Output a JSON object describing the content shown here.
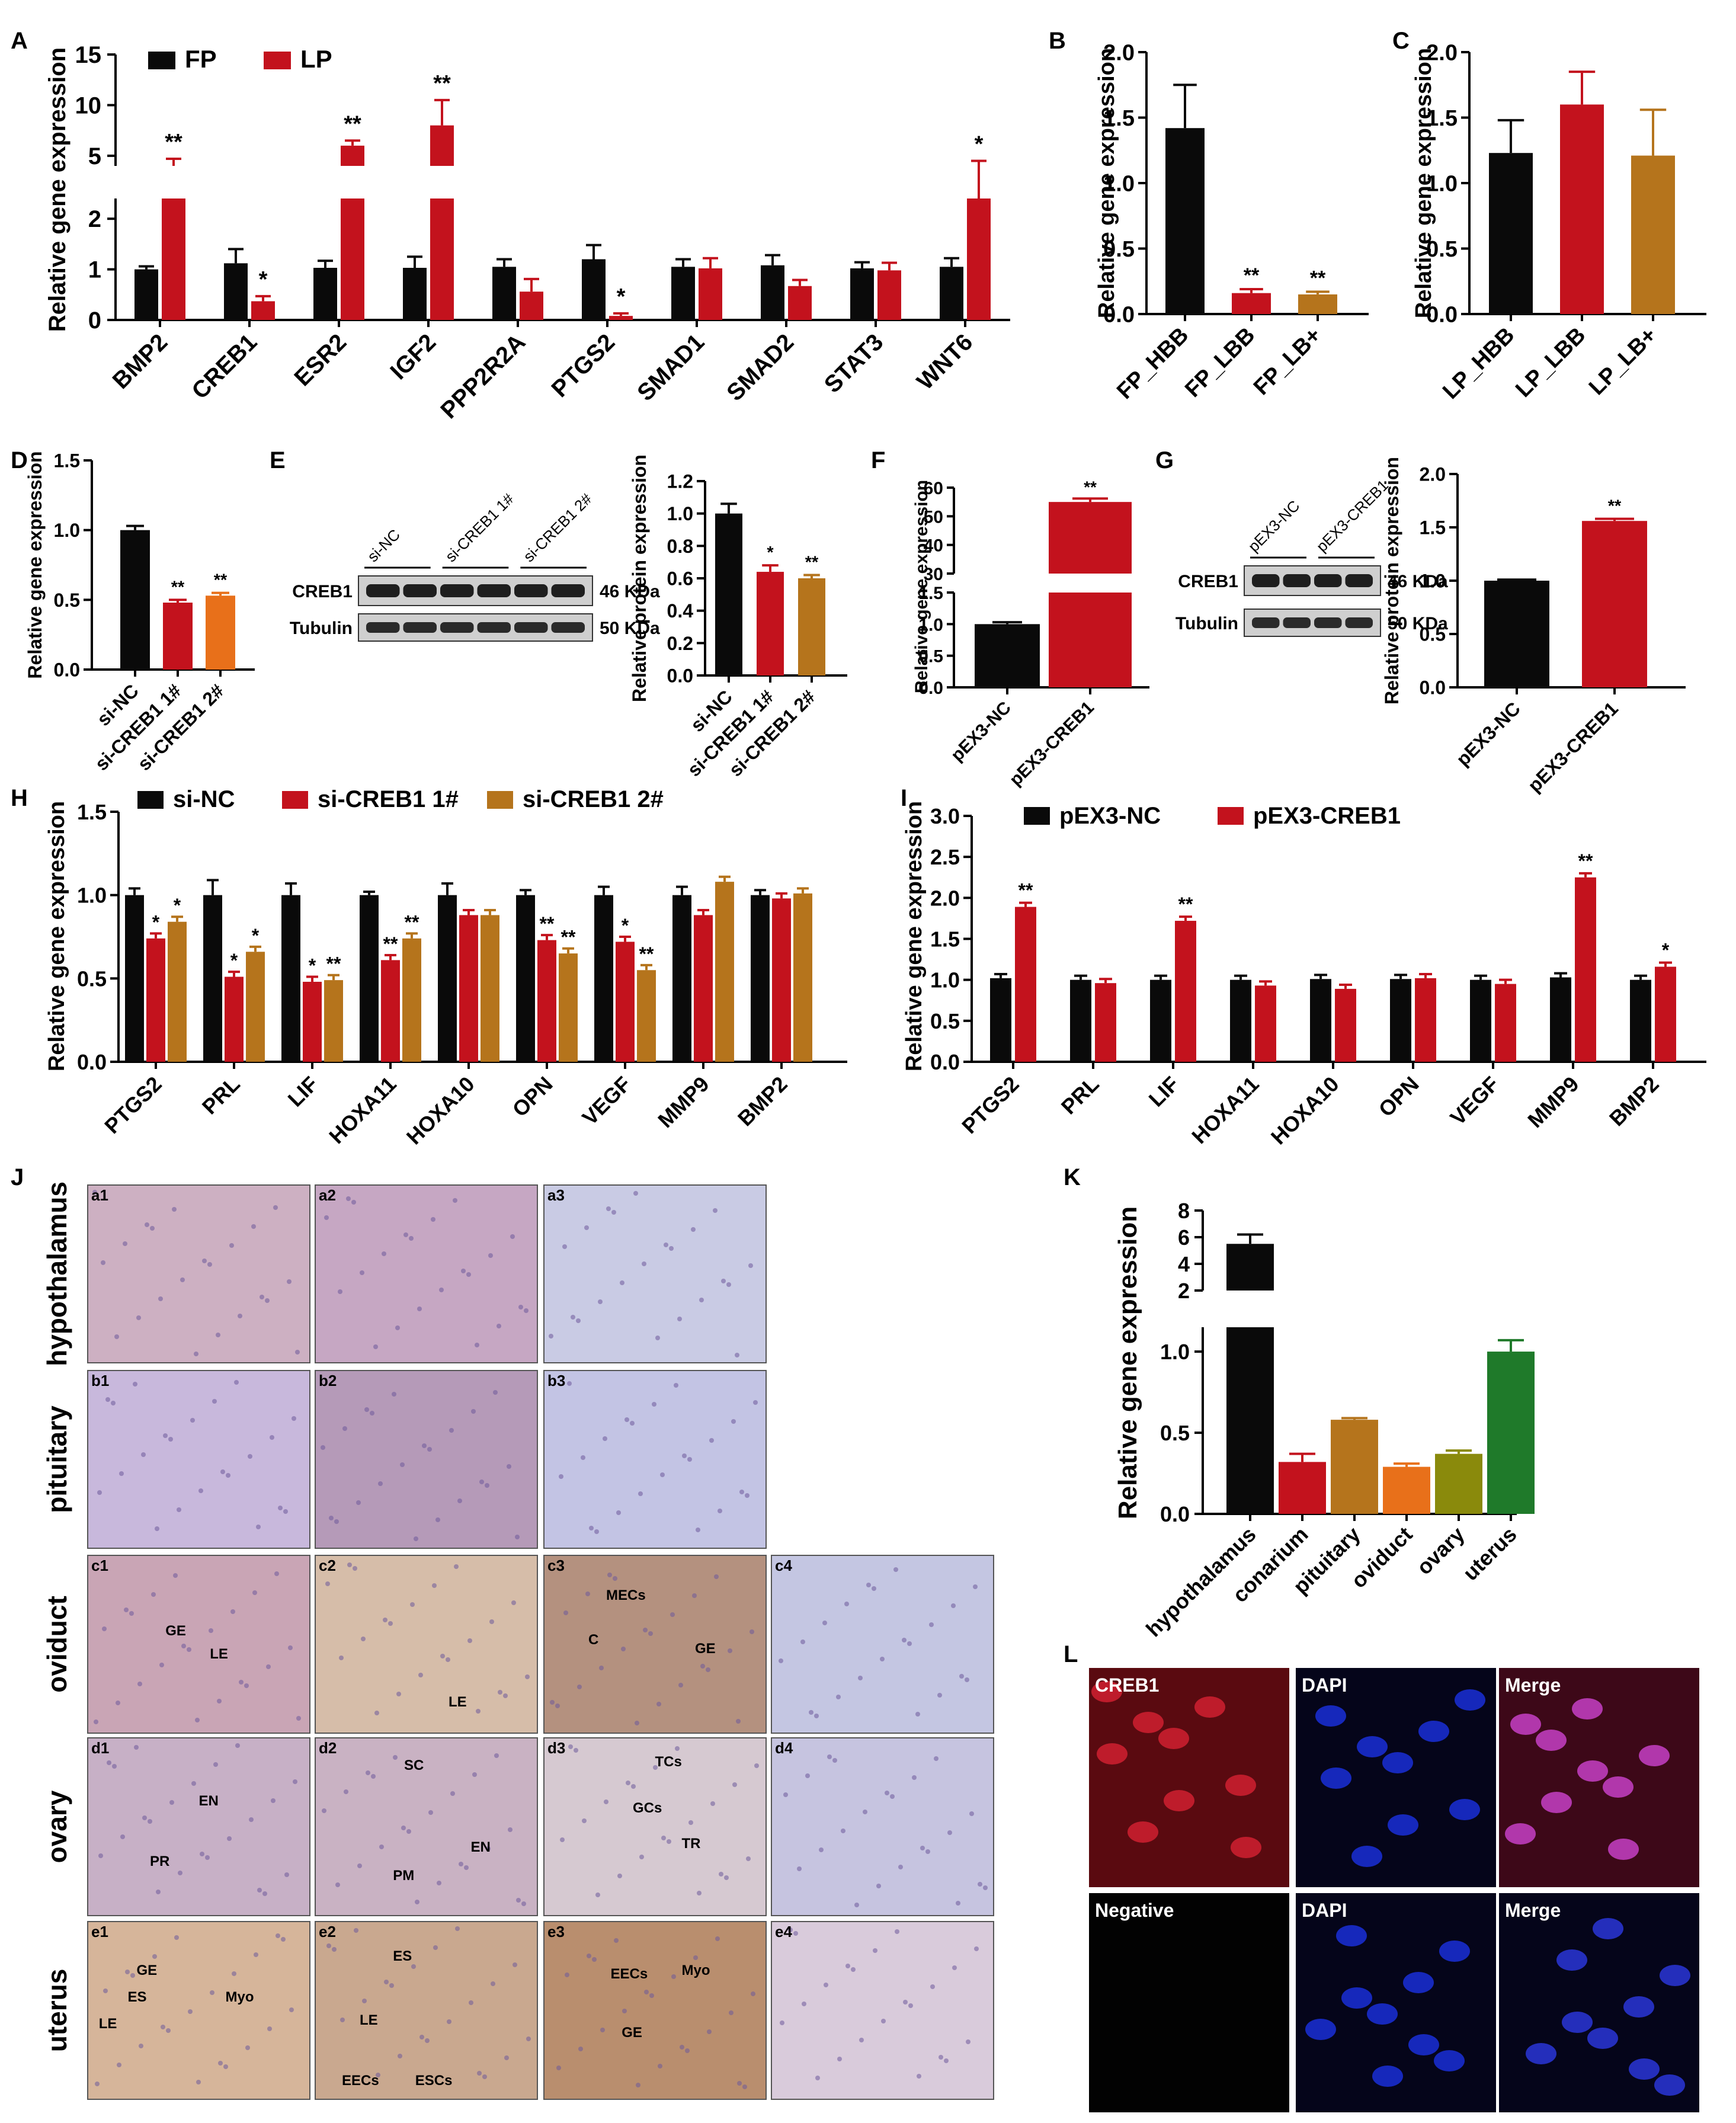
{
  "colors": {
    "black": "#0a0a0a",
    "red": "#c3121d",
    "brown": "#b5741c",
    "orange": "#e8701a",
    "olive": "#8a8a0c",
    "green": "#1f7a2a"
  },
  "chart_data": [
    {
      "panel": "A",
      "type": "bar",
      "ylabel": "Relative gene expression",
      "categories": [
        "BMP2",
        "CREB1",
        "ESR2",
        "IGF2",
        "PPP2R2A",
        "PTGS2",
        "SMAD1",
        "SMAD2",
        "STAT3",
        "WNT6"
      ],
      "legend": [
        "FP",
        "LP"
      ],
      "series": [
        {
          "name": "FP",
          "values": [
            1.0,
            1.12,
            1.03,
            1.03,
            1.05,
            1.2,
            1.05,
            1.08,
            1.02,
            1.05
          ],
          "err": [
            0.06,
            0.28,
            0.14,
            0.22,
            0.15,
            0.28,
            0.15,
            0.2,
            0.12,
            0.17
          ]
        },
        {
          "name": "LP",
          "values": [
            4.0,
            0.37,
            6.0,
            8.0,
            0.56,
            0.08,
            1.02,
            0.67,
            0.98,
            3.8
          ],
          "err": [
            0.7,
            0.1,
            0.5,
            2.5,
            0.25,
            0.05,
            0.2,
            0.12,
            0.15,
            0.7
          ]
        }
      ],
      "significance": [
        {
          "cat": "BMP2",
          "label": "**"
        },
        {
          "cat": "CREB1",
          "label": "*"
        },
        {
          "cat": "ESR2",
          "label": "**"
        },
        {
          "cat": "IGF2",
          "label": "**"
        },
        {
          "cat": "PTGS2",
          "label": "*"
        },
        {
          "cat": "WNT6",
          "label": "*"
        }
      ],
      "y_lower_ticks": [
        "0",
        "1",
        "2"
      ],
      "y_upper_ticks": [
        "5",
        "10",
        "15"
      ]
    },
    {
      "panel": "B",
      "type": "bar",
      "ylabel": "Relative gene expression",
      "categories": [
        "FP_HBB",
        "FP_LBB",
        "FP_LB+"
      ],
      "values": [
        1.42,
        0.16,
        0.15
      ],
      "err": [
        0.33,
        0.03,
        0.02
      ],
      "significance": [
        "",
        "**",
        "**"
      ],
      "ylim": [
        0,
        2.0
      ],
      "yticks": [
        "0.0",
        "0.5",
        "1.0",
        "1.5",
        "2.0"
      ]
    },
    {
      "panel": "C",
      "type": "bar",
      "ylabel": "Relative gene expression",
      "categories": [
        "LP_HBB",
        "LP_LBB",
        "LP_LB+"
      ],
      "values": [
        1.23,
        1.6,
        1.21
      ],
      "err": [
        0.25,
        0.25,
        0.35
      ],
      "ylim": [
        0,
        2.0
      ],
      "yticks": [
        "0.0",
        "0.5",
        "1.0",
        "1.5",
        "2.0"
      ]
    },
    {
      "panel": "D",
      "type": "bar",
      "ylabel": "Relative gene expression",
      "categories": [
        "si-NC",
        "si-CREB1 1#",
        "si-CREB1 2#"
      ],
      "values": [
        1.0,
        0.48,
        0.53
      ],
      "err": [
        0.03,
        0.02,
        0.02
      ],
      "significance": [
        "",
        "**",
        "**"
      ],
      "ylim": [
        0,
        1.5
      ],
      "yticks": [
        "0.0",
        "0.5",
        "1.0",
        "1.5"
      ]
    },
    {
      "panel": "E",
      "type": "bar",
      "ylabel": "Relative protein expression",
      "categories": [
        "si-NC",
        "si-CREB1 1#",
        "si-CREB1 2#"
      ],
      "values": [
        1.0,
        0.64,
        0.6
      ],
      "err": [
        0.06,
        0.04,
        0.02
      ],
      "significance": [
        "",
        "*",
        "**"
      ],
      "ylim": [
        0,
        1.2
      ],
      "yticks": [
        "0.0",
        "0.2",
        "0.4",
        "0.6",
        "0.8",
        "1.0",
        "1.2"
      ]
    },
    {
      "panel": "F",
      "type": "bar",
      "ylabel": "Relative gene expression",
      "categories": [
        "pEX3-NC",
        "pEX3-CREB1"
      ],
      "values": [
        1.0,
        55.0
      ],
      "err": [
        0.03,
        1.2
      ],
      "significance": [
        "",
        "**"
      ],
      "y_lower_ticks": [
        "0.0",
        "0.5",
        "1.0",
        "1.5"
      ],
      "y_upper_ticks": [
        "30",
        "40",
        "50",
        "60"
      ]
    },
    {
      "panel": "G",
      "type": "bar",
      "ylabel": "Relative protein expression",
      "categories": [
        "pEX3-NC",
        "pEX3-CREB1"
      ],
      "values": [
        1.0,
        1.56
      ],
      "err": [
        0.01,
        0.02
      ],
      "significance": [
        "",
        "**"
      ],
      "ylim": [
        0,
        2.0
      ],
      "yticks": [
        "0.0",
        "0.5",
        "1.0",
        "1.5",
        "2.0"
      ]
    },
    {
      "panel": "H",
      "type": "bar",
      "ylabel": "Relative gene expression",
      "categories": [
        "PTGS2",
        "PRL",
        "LIF",
        "HOXA11",
        "HOXA10",
        "OPN",
        "VEGF",
        "MMP9",
        "BMP2"
      ],
      "legend": [
        "si-NC",
        "si-CREB1 1#",
        "si-CREB1 2#"
      ],
      "series": [
        {
          "name": "si-NC",
          "values": [
            1.0,
            1.0,
            1.0,
            1.0,
            1.0,
            1.0,
            1.0,
            1.0,
            1.0
          ],
          "err": [
            0.04,
            0.09,
            0.07,
            0.02,
            0.07,
            0.03,
            0.05,
            0.05,
            0.03
          ]
        },
        {
          "name": "si-CREB1 1#",
          "values": [
            0.74,
            0.51,
            0.48,
            0.61,
            0.88,
            0.73,
            0.72,
            0.88,
            0.98
          ]
        },
        {
          "name": "si-CREB1 2#",
          "values": [
            0.84,
            0.66,
            0.49,
            0.74,
            0.88,
            0.65,
            0.55,
            1.08,
            1.01
          ]
        }
      ],
      "significance": [
        [
          "",
          "*",
          "*"
        ],
        [
          "",
          "*",
          "*"
        ],
        [
          "",
          "*",
          "**"
        ],
        [
          "",
          "**",
          "**"
        ],
        [
          "",
          "",
          ""
        ],
        [
          "",
          "**",
          "**"
        ],
        [
          "",
          "*",
          "**"
        ],
        [
          "",
          "",
          ""
        ],
        [
          "",
          "",
          ""
        ]
      ],
      "ylim": [
        0,
        1.5
      ],
      "yticks": [
        "0.0",
        "0.5",
        "1.0",
        "1.5"
      ]
    },
    {
      "panel": "I",
      "type": "bar",
      "ylabel": "Relative gene expression",
      "categories": [
        "PTGS2",
        "PRL",
        "LIF",
        "HOXA11",
        "HOXA10",
        "OPN",
        "VEGF",
        "MMP9",
        "BMP2"
      ],
      "legend": [
        "pEX3-NC",
        "pEX3-CREB1"
      ],
      "series": [
        {
          "name": "pEX3-NC",
          "values": [
            1.02,
            1.0,
            1.0,
            1.0,
            1.01,
            1.01,
            1.0,
            1.03,
            1.0
          ]
        },
        {
          "name": "pEX3-CREB1",
          "values": [
            1.89,
            0.96,
            1.72,
            0.93,
            0.89,
            1.02,
            0.95,
            2.25,
            1.16
          ]
        }
      ],
      "significance": [
        "**",
        "",
        "**",
        "",
        "",
        "",
        "",
        "**",
        "*"
      ],
      "ylim": [
        0,
        3.0
      ],
      "yticks": [
        "0.0",
        "0.5",
        "1.0",
        "1.5",
        "2.0",
        "2.5",
        "3.0"
      ]
    },
    {
      "panel": "K",
      "type": "bar",
      "ylabel": "Relative gene expression",
      "categories": [
        "hypothalamus",
        "conarium",
        "pituitary",
        "oviduct",
        "ovary",
        "uterus"
      ],
      "values": [
        5.5,
        0.32,
        0.58,
        0.29,
        0.37,
        1.0
      ],
      "err": [
        0.7,
        0.05,
        0.01,
        0.02,
        0.02,
        0.07
      ],
      "y_lower_ticks": [
        "0.0",
        "0.5",
        "1.0"
      ],
      "y_upper_ticks": [
        "2",
        "4",
        "6",
        "8"
      ]
    }
  ],
  "panels": {
    "A": "A",
    "B": "B",
    "C": "C",
    "D": "D",
    "E": "E",
    "F": "F",
    "G": "G",
    "H": "H",
    "I": "I",
    "J": "J",
    "K": "K",
    "L": "L"
  },
  "blot_E": {
    "lanes": [
      "si-NC",
      "si-CREB1 1#",
      "si-CREB1 2#"
    ],
    "rows": [
      "CREB1",
      "Tubulin"
    ],
    "sizes": [
      "46 KDa",
      "50 KDa"
    ]
  },
  "blot_G": {
    "lanes": [
      "pEX3-NC",
      "pEX3-CREB1"
    ],
    "rows": [
      "CREB1",
      "Tubulin"
    ],
    "sizes": [
      "46 KDa",
      "50 KDa"
    ]
  },
  "histology": {
    "rows": [
      "hypothalamus",
      "pituitary",
      "oviduct",
      "ovary",
      "uterus"
    ],
    "panel_labels": [
      [
        "a1",
        "a2",
        "a3"
      ],
      [
        "b1",
        "b2",
        "b3"
      ],
      [
        "c1",
        "c2",
        "c3",
        "c4"
      ],
      [
        "d1",
        "d2",
        "d3",
        "d4"
      ],
      [
        "e1",
        "e2",
        "e3",
        "e4"
      ]
    ],
    "annotations": [
      {
        "panel": "c1",
        "labels": [
          "GE",
          "LE"
        ]
      },
      {
        "panel": "c2",
        "labels": [
          "LE"
        ]
      },
      {
        "panel": "c3",
        "labels": [
          "MECs",
          "C",
          "GE"
        ]
      },
      {
        "panel": "d1",
        "labels": [
          "EN",
          "PR"
        ]
      },
      {
        "panel": "d2",
        "labels": [
          "SC",
          "EN",
          "PM"
        ]
      },
      {
        "panel": "d3",
        "labels": [
          "TCs",
          "GCs",
          "TR"
        ]
      },
      {
        "panel": "e1",
        "labels": [
          "GE",
          "ES",
          "Myo",
          "LE"
        ]
      },
      {
        "panel": "e2",
        "labels": [
          "ES",
          "LE",
          "EECs",
          "ESCs"
        ]
      },
      {
        "panel": "e3",
        "labels": [
          "EECs",
          "Myo",
          "GE"
        ]
      }
    ]
  },
  "fluorescence": {
    "tiles": [
      "CREB1",
      "DAPI",
      "Merge",
      "Negative",
      "DAPI",
      "Merge"
    ]
  }
}
